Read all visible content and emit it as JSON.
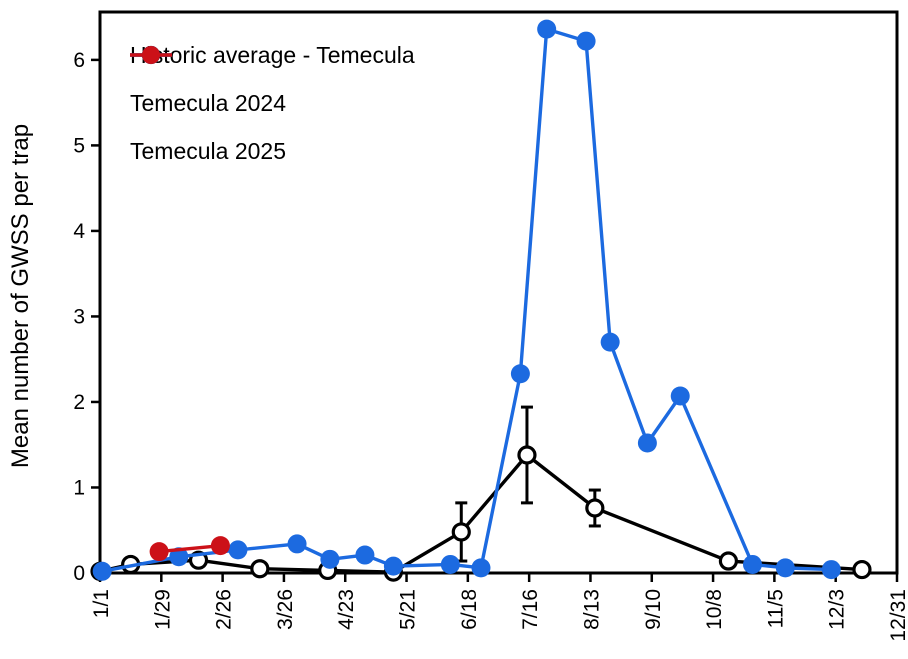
{
  "chart_data": {
    "type": "line",
    "title": "",
    "xlabel": "",
    "ylabel": "Mean number of GWSS per trap",
    "ylim": [
      0,
      6.56
    ],
    "yticks": [
      0,
      1,
      2,
      3,
      4,
      5,
      6
    ],
    "xlim_days": [
      0,
      364
    ],
    "x_tick_labels": [
      "1/1",
      "1/29",
      "2/26",
      "3/26",
      "4/23",
      "5/21",
      "6/18",
      "7/16",
      "8/13",
      "9/10",
      "10/8",
      "11/5",
      "12/3",
      "12/31"
    ],
    "x_tick_days": [
      0,
      28,
      56,
      84,
      112,
      140,
      168,
      196,
      224,
      252,
      280,
      308,
      336,
      364
    ],
    "grid": false,
    "legend_position": "top-left",
    "series": [
      {
        "name": "Historic average - Temecula",
        "color": "#000000",
        "marker": "open-circle",
        "points": [
          {
            "date": "1/1",
            "day": 0,
            "value": 0.02
          },
          {
            "date": "1/15",
            "day": 14,
            "value": 0.1
          },
          {
            "date": "2/15",
            "day": 45,
            "value": 0.15
          },
          {
            "date": "3/15",
            "day": 73,
            "value": 0.05
          },
          {
            "date": "4/15",
            "day": 104,
            "value": 0.03
          },
          {
            "date": "5/15",
            "day": 134,
            "value": 0.01
          },
          {
            "date": "6/15",
            "day": 165,
            "value": 0.48,
            "err": 0.34
          },
          {
            "date": "7/15",
            "day": 195,
            "value": 1.38,
            "err": 0.56
          },
          {
            "date": "8/15",
            "day": 226,
            "value": 0.76,
            "err": 0.21
          },
          {
            "date": "10/15",
            "day": 287,
            "value": 0.14
          },
          {
            "date": "12/15",
            "day": 348,
            "value": 0.04
          }
        ]
      },
      {
        "name": "Temecula 2024",
        "color": "#1c6ae0",
        "marker": "filled-circle",
        "points": [
          {
            "date": "1/1",
            "day": 1,
            "value": 0.02
          },
          {
            "date": "2/6",
            "day": 36,
            "value": 0.19
          },
          {
            "date": "3/5",
            "day": 63,
            "value": 0.27
          },
          {
            "date": "4/1",
            "day": 90,
            "value": 0.34
          },
          {
            "date": "4/16",
            "day": 105,
            "value": 0.16
          },
          {
            "date": "5/2",
            "day": 121,
            "value": 0.21
          },
          {
            "date": "5/15",
            "day": 134,
            "value": 0.08
          },
          {
            "date": "6/10",
            "day": 160,
            "value": 0.1
          },
          {
            "date": "6/24",
            "day": 174,
            "value": 0.06
          },
          {
            "date": "7/12",
            "day": 192,
            "value": 2.33
          },
          {
            "date": "7/24",
            "day": 204,
            "value": 6.36
          },
          {
            "date": "8/11",
            "day": 222,
            "value": 6.22
          },
          {
            "date": "8/22",
            "day": 233,
            "value": 2.7
          },
          {
            "date": "9/8",
            "day": 250,
            "value": 1.52
          },
          {
            "date": "9/23",
            "day": 265,
            "value": 2.07
          },
          {
            "date": "10/26",
            "day": 298,
            "value": 0.1
          },
          {
            "date": "11/10",
            "day": 313,
            "value": 0.06
          },
          {
            "date": "12/1",
            "day": 334,
            "value": 0.04
          }
        ]
      },
      {
        "name": "Temecula 2025",
        "color": "#cc1118",
        "marker": "filled-circle",
        "points": [
          {
            "date": "1/28",
            "day": 27,
            "value": 0.25
          },
          {
            "date": "2/25",
            "day": 55,
            "value": 0.32
          }
        ]
      }
    ]
  }
}
